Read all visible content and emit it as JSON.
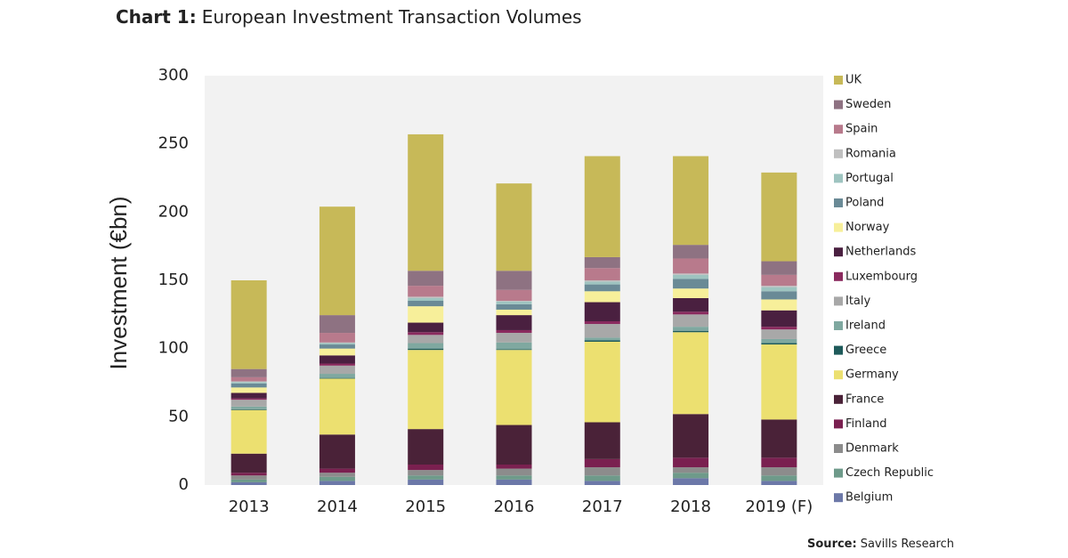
{
  "chart_data": {
    "type": "stacked_bar",
    "chart_label": "Chart 1:",
    "title": "European Investment Transaction Volumes",
    "y_label": "Investment (€bn)",
    "source_label": "Source:",
    "source": "Savills Research",
    "categories": [
      "2013",
      "2014",
      "2015",
      "2016",
      "2017",
      "2018",
      "2019 (F)"
    ],
    "ylim": [
      0,
      300
    ],
    "yticks": [
      0,
      50,
      100,
      150,
      200,
      250,
      300
    ],
    "grid": false,
    "series": [
      {
        "name": "Belgium",
        "color": "#6c78a8",
        "values": [
          2,
          3,
          4,
          4,
          3,
          5,
          3
        ]
      },
      {
        "name": "Czech Republic",
        "color": "#6e9a8a",
        "values": [
          2,
          3,
          3,
          3,
          4,
          4,
          4
        ]
      },
      {
        "name": "Denmark",
        "color": "#8c8c8c",
        "values": [
          3,
          3,
          4,
          5,
          6,
          4,
          6
        ]
      },
      {
        "name": "Finland",
        "color": "#7a2050",
        "values": [
          2,
          3,
          4,
          3,
          6,
          7,
          7
        ]
      },
      {
        "name": "France",
        "color": "#4a2238",
        "values": [
          14,
          25,
          26,
          29,
          27,
          32,
          28
        ]
      },
      {
        "name": "Germany",
        "color": "#ece070",
        "values": [
          32,
          41,
          58,
          55,
          59,
          60,
          55
        ]
      },
      {
        "name": "Greece",
        "color": "#1e5a5a",
        "values": [
          0.5,
          0.5,
          1,
          0.5,
          1,
          1,
          1
        ]
      },
      {
        "name": "Ireland",
        "color": "#7fa8a0",
        "values": [
          2,
          3,
          4,
          5,
          2,
          3,
          3
        ]
      },
      {
        "name": "Italy",
        "color": "#a8a8a8",
        "values": [
          5,
          6,
          6,
          7,
          10,
          9,
          7
        ]
      },
      {
        "name": "Luxembourg",
        "color": "#8a2a5e",
        "values": [
          1,
          1.5,
          2,
          2,
          2,
          2,
          2
        ]
      },
      {
        "name": "Netherlands",
        "color": "#4a2040",
        "values": [
          4,
          6,
          7,
          11,
          14,
          10,
          12
        ]
      },
      {
        "name": "Norway",
        "color": "#f7ef9a",
        "values": [
          4,
          5,
          12,
          4,
          8,
          7,
          8
        ]
      },
      {
        "name": "Poland",
        "color": "#6a8a96",
        "values": [
          3,
          3,
          4,
          4,
          5,
          7,
          6
        ]
      },
      {
        "name": "Portugal",
        "color": "#9ec4c0",
        "values": [
          1,
          1,
          2,
          2,
          2,
          3,
          3
        ]
      },
      {
        "name": "Romania",
        "color": "#c0c0c0",
        "values": [
          0.5,
          0.5,
          1,
          0.5,
          1,
          1,
          1
        ]
      },
      {
        "name": "Spain",
        "color": "#b87a8c",
        "values": [
          3,
          7,
          8,
          8,
          9,
          11,
          8
        ]
      },
      {
        "name": "Sweden",
        "color": "#8e7282",
        "values": [
          6,
          13,
          11,
          14,
          8,
          10,
          10
        ]
      },
      {
        "name": "UK",
        "color": "#c7b958",
        "values": [
          65,
          79.5,
          100,
          64,
          74,
          65,
          65
        ]
      }
    ]
  }
}
